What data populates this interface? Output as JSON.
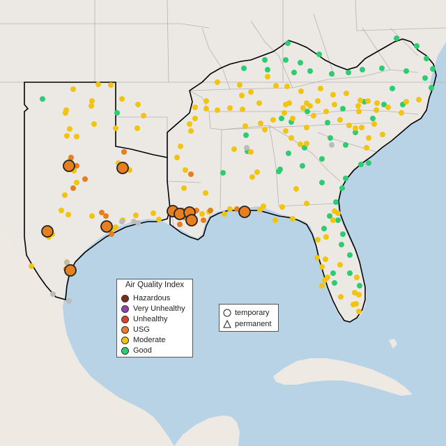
{
  "aqi_legend": {
    "title": "Air Quality Index",
    "items": [
      {
        "label": "Hazardous",
        "color": "#7e2b21"
      },
      {
        "label": "Very Unhealthy",
        "color": "#8e44ad"
      },
      {
        "label": "Unhealthy",
        "color": "#e0402d"
      },
      {
        "label": "USG",
        "color": "#e67e22"
      },
      {
        "label": "Moderate",
        "color": "#f1c40f"
      },
      {
        "label": "Good",
        "color": "#2ecc71"
      }
    ]
  },
  "shape_legend": {
    "items": [
      {
        "label": "temporary",
        "shape": "circle"
      },
      {
        "label": "permanent",
        "shape": "triangle"
      }
    ]
  },
  "colors": {
    "water": "#b8d3e6",
    "land": "#ece8e4",
    "mexico_land": "#efe9e4",
    "state_border": "#b6b2ae",
    "region_outline": "#000000",
    "usg_marker": "#e67e22",
    "moderate_marker": "#f1c40f",
    "good_marker": "#2ecc71",
    "no_data_marker": "#bbbbbb"
  }
}
